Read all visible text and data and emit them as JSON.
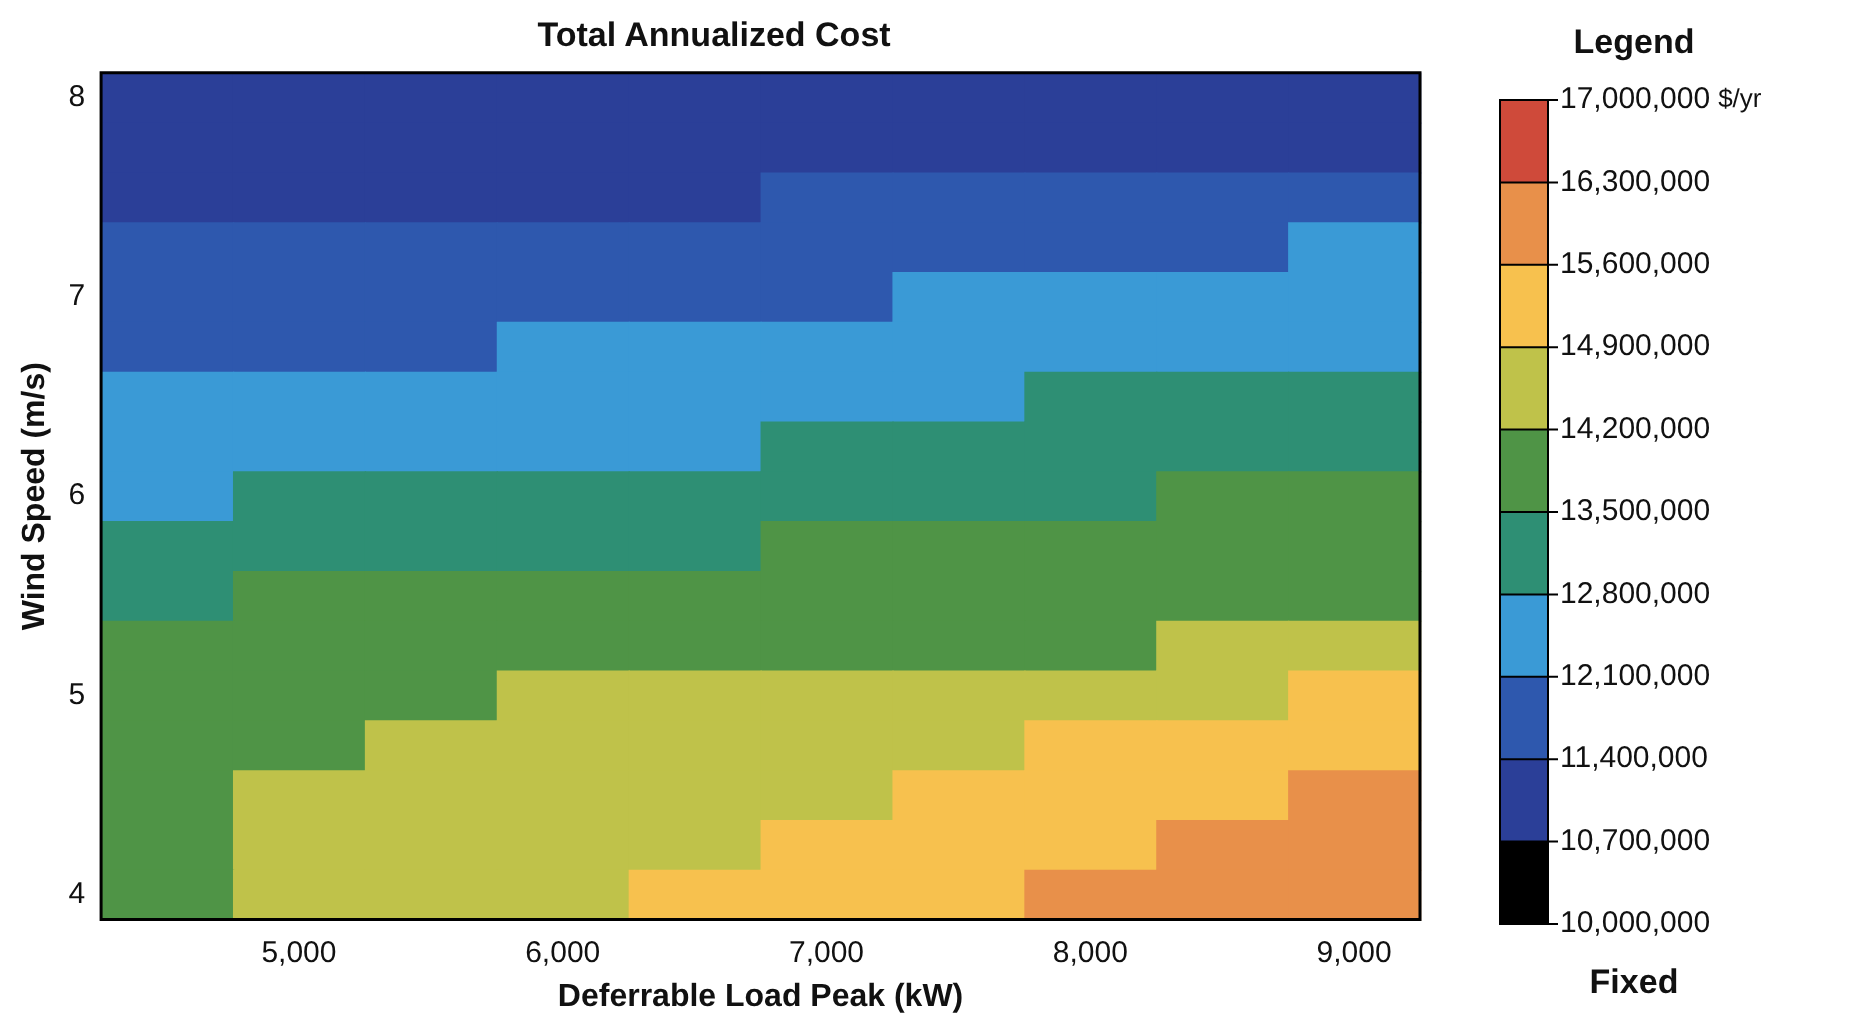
{
  "chart_data": {
    "type": "heatmap",
    "title": "Total Annualized Cost",
    "xlabel": "Deferrable Load Peak (kW)",
    "ylabel": "Wind Speed (m/s)",
    "legend_title": "Legend",
    "clabel": "$/yr",
    "annotations": [
      "Fixed"
    ],
    "categories": [
      null,
      "5,000",
      null,
      "6,000",
      null,
      "7,000",
      null,
      "8,000",
      null,
      "9,000"
    ],
    "y_categories": [
      "8",
      null,
      null,
      null,
      "7",
      null,
      null,
      null,
      "6",
      null,
      null,
      null,
      "5",
      null,
      null,
      null,
      "4"
    ],
    "cells": [
      [
        11050000,
        11050000,
        11050000,
        11050000,
        11050000,
        11050000,
        11050000,
        11050000,
        11050000,
        11050000
      ],
      [
        11050000,
        11050000,
        11050000,
        11050000,
        11050000,
        11050000,
        11050000,
        11050000,
        11050000,
        11050000
      ],
      [
        11050000,
        11050000,
        11050000,
        11050000,
        11050000,
        11750000,
        11750000,
        11750000,
        11750000,
        11750000
      ],
      [
        11750000,
        11750000,
        11750000,
        11750000,
        11750000,
        11750000,
        11750000,
        11750000,
        11750000,
        12450000
      ],
      [
        11750000,
        11750000,
        11750000,
        11750000,
        11750000,
        11750000,
        12450000,
        12450000,
        12450000,
        12450000
      ],
      [
        11750000,
        11750000,
        11750000,
        12450000,
        12450000,
        12450000,
        12450000,
        12450000,
        12450000,
        12450000
      ],
      [
        12450000,
        12450000,
        12450000,
        12450000,
        12450000,
        12450000,
        12450000,
        13150000,
        13150000,
        13150000
      ],
      [
        12450000,
        12450000,
        12450000,
        12450000,
        12450000,
        13150000,
        13150000,
        13150000,
        13150000,
        13150000
      ],
      [
        12450000,
        13150000,
        13150000,
        13150000,
        13150000,
        13150000,
        13150000,
        13150000,
        13850000,
        13850000
      ],
      [
        13150000,
        13150000,
        13150000,
        13150000,
        13150000,
        13850000,
        13850000,
        13850000,
        13850000,
        13850000
      ],
      [
        13150000,
        13850000,
        13850000,
        13850000,
        13850000,
        13850000,
        13850000,
        13850000,
        13850000,
        13850000
      ],
      [
        13850000,
        13850000,
        13850000,
        13850000,
        13850000,
        13850000,
        13850000,
        13850000,
        14550000,
        14550000
      ],
      [
        13850000,
        13850000,
        13850000,
        14550000,
        14550000,
        14550000,
        14550000,
        14550000,
        14550000,
        15250000
      ],
      [
        13850000,
        13850000,
        14550000,
        14550000,
        14550000,
        14550000,
        14550000,
        15250000,
        15250000,
        15250000
      ],
      [
        13850000,
        14550000,
        14550000,
        14550000,
        14550000,
        14550000,
        15250000,
        15250000,
        15250000,
        15950000
      ],
      [
        13850000,
        14550000,
        14550000,
        14550000,
        14550000,
        15250000,
        15250000,
        15250000,
        15950000,
        15950000
      ],
      [
        13850000,
        14550000,
        14550000,
        14550000,
        15250000,
        15250000,
        15250000,
        15950000,
        15950000,
        15950000
      ]
    ],
    "clim": [
      10000000,
      17000000
    ],
    "cticks": [
      {
        "value": 10000000,
        "label": "10,000,000"
      },
      {
        "value": 10700000,
        "label": "10,700,000"
      },
      {
        "value": 11400000,
        "label": "11,400,000"
      },
      {
        "value": 12100000,
        "label": "12,100,000"
      },
      {
        "value": 12800000,
        "label": "12,800,000"
      },
      {
        "value": 13500000,
        "label": "13,500,000"
      },
      {
        "value": 14200000,
        "label": "14,200,000"
      },
      {
        "value": 14900000,
        "label": "14,900,000"
      },
      {
        "value": 15600000,
        "label": "15,600,000"
      },
      {
        "value": 16300000,
        "label": "16,300,000"
      },
      {
        "value": 17000000,
        "label": "17,000,000"
      }
    ]
  }
}
